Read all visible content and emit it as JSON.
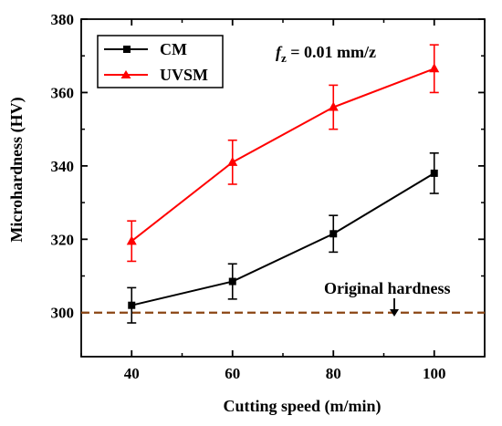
{
  "chart_data": {
    "type": "line",
    "xlabel": "Cutting speed (m/min)",
    "ylabel": "Microhardness (HV)",
    "x_ticks": [
      "40",
      "60",
      "80",
      "100"
    ],
    "y_ticks": [
      "300",
      "320",
      "340",
      "360",
      "380"
    ],
    "xlim": [
      30,
      110
    ],
    "ylim": [
      288,
      380
    ],
    "series": [
      {
        "name": "CM",
        "color": "#000000",
        "marker": "square",
        "x": [
          40,
          60,
          80,
          100
        ],
        "y": [
          302,
          308.5,
          321.5,
          338
        ],
        "err": [
          4.8,
          4.8,
          5.0,
          5.5
        ]
      },
      {
        "name": "UVSM",
        "color": "#ff0000",
        "marker": "triangle",
        "x": [
          40,
          60,
          80,
          100
        ],
        "y": [
          319.5,
          341,
          356,
          366.5
        ],
        "err": [
          5.5,
          6.0,
          6.0,
          6.5
        ]
      }
    ],
    "reference_line": {
      "label": "Original hardness",
      "y": 300,
      "color": "#8b4513",
      "style": "dashed"
    },
    "annotation": {
      "prefix": "f",
      "subscript": "z",
      "suffix": " = 0.01 mm/z"
    },
    "legend_position": "top-left",
    "grid": false
  }
}
